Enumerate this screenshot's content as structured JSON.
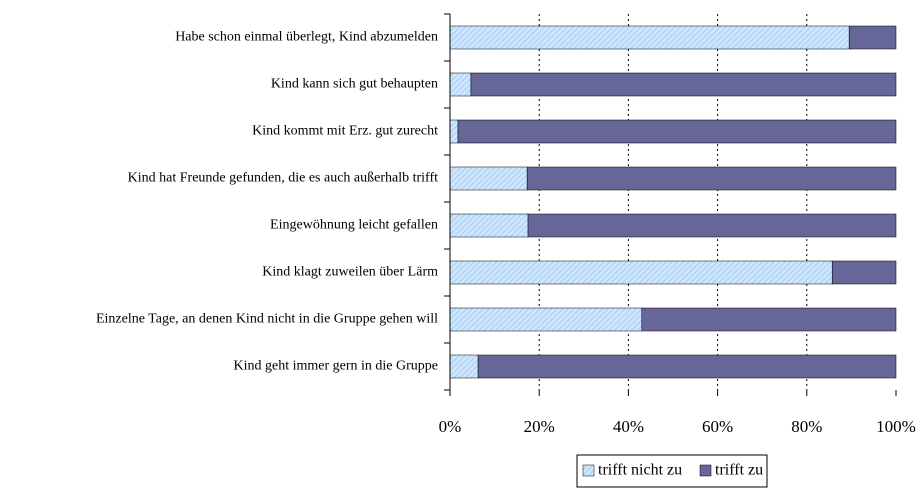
{
  "chart_data": {
    "type": "stacked_barh",
    "categories": [
      "Habe schon einmal überlegt, Kind abzumelden",
      "Kind kann sich gut behaupten",
      "Kind kommt mit Erz. gut zurecht",
      "Kind hat Freunde gefunden, die es auch außerhalb trifft",
      "Eingewöhnung leicht gefallen",
      "Kind klagt zuweilen über Lärm",
      "Einzelne Tage, an denen Kind nicht in die Gruppe gehen will",
      "Kind geht immer gern in die Gruppe"
    ],
    "series": [
      {
        "name": "trifft nicht zu",
        "color": "#cce6ff",
        "values": [
          89.5,
          4.7,
          1.8,
          17.3,
          17.5,
          85.7,
          43,
          6.3
        ]
      },
      {
        "name": "trifft zu",
        "color": "#666699",
        "values": [
          10.5,
          95.3,
          98.2,
          82.7,
          82.5,
          14.3,
          57,
          93.7
        ]
      }
    ],
    "xlim": [
      0,
      100
    ],
    "xticks": [
      {
        "value": 0,
        "label": "0%"
      },
      {
        "value": 20,
        "label": "20%"
      },
      {
        "value": 40,
        "label": "40%"
      },
      {
        "value": 60,
        "label": "60%"
      },
      {
        "value": 80,
        "label": "80%"
      },
      {
        "value": 100,
        "label": "100%"
      }
    ],
    "grid": true,
    "legend": "bottom"
  }
}
